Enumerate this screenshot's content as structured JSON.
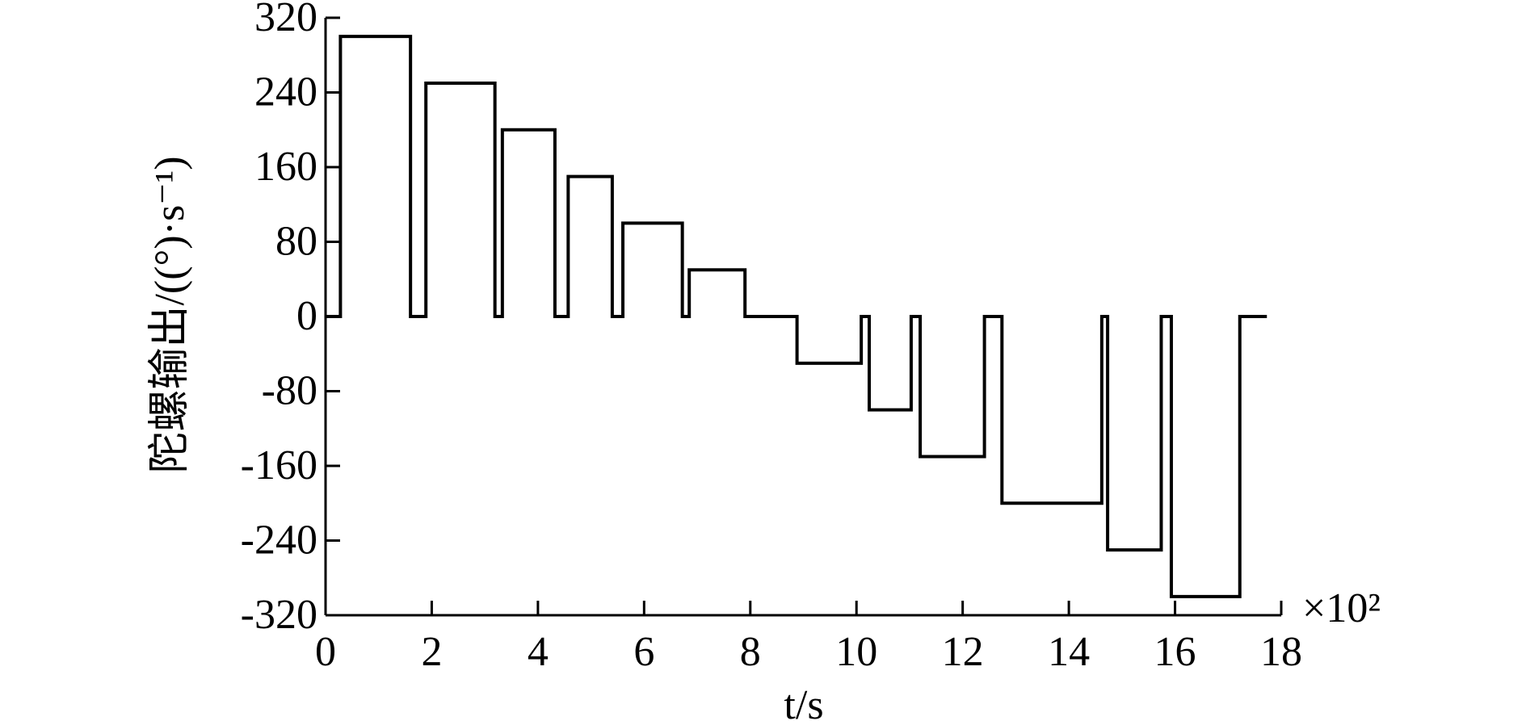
{
  "chart_data": {
    "type": "line",
    "xlabel": "t/s",
    "ylabel": "陀螺输出/((°)·s⁻¹)",
    "x_multiplier": "×10²",
    "x": [
      0,
      0.28,
      0.28,
      1.6,
      1.6,
      1.89,
      1.89,
      3.19,
      3.19,
      3.33,
      3.33,
      4.32,
      4.32,
      4.57,
      4.57,
      5.4,
      5.4,
      5.6,
      5.6,
      6.72,
      6.72,
      6.85,
      6.85,
      7.9,
      7.9,
      8.88,
      8.88,
      10.09,
      10.09,
      10.24,
      10.24,
      11.03,
      11.03,
      11.2,
      11.2,
      12.41,
      12.41,
      12.74,
      12.74,
      14.62,
      14.62,
      14.73,
      14.73,
      15.74,
      15.74,
      15.93,
      15.93,
      17.22,
      17.22,
      17.73
    ],
    "series": [
      {
        "color": "#000000",
        "values": [
          0,
          0,
          300,
          300,
          0,
          0,
          250,
          250,
          0,
          0,
          200,
          200,
          0,
          0,
          150,
          150,
          0,
          0,
          100,
          100,
          0,
          0,
          50,
          50,
          0,
          0,
          -50,
          -50,
          0,
          0,
          -100,
          -100,
          0,
          0,
          -150,
          -150,
          0,
          0,
          -200,
          -200,
          0,
          0,
          -250,
          -250,
          0,
          0,
          -300,
          -300,
          0,
          0
        ]
      }
    ],
    "xlim": [
      0,
      18
    ],
    "xticks": [
      0,
      2,
      4,
      6,
      8,
      10,
      12,
      14,
      16,
      18
    ],
    "ylim": [
      -320,
      320
    ],
    "yticks": [
      -320,
      -240,
      -160,
      -80,
      0,
      80,
      160,
      240,
      320
    ]
  }
}
